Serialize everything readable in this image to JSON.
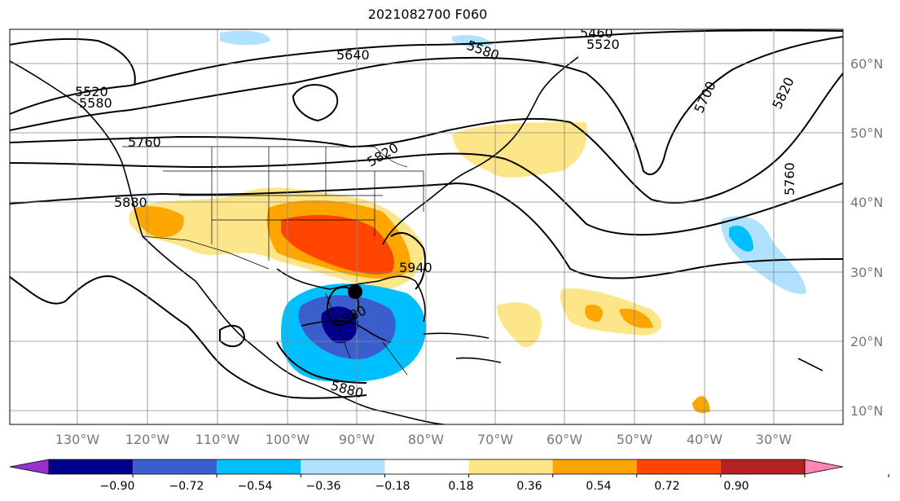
{
  "title": "2021082700 F060",
  "map": {
    "lat_labels": [
      "10°N",
      "20°N",
      "30°N",
      "40°N",
      "50°N",
      "60°N"
    ],
    "lon_labels": [
      "130°W",
      "120°W",
      "110°W",
      "100°W",
      "90°W",
      "80°W",
      "70°W",
      "60°W",
      "50°W",
      "40°W",
      "30°W"
    ],
    "contour_labels": [
      "5460",
      "5520",
      "5580",
      "5640",
      "5520",
      "5580",
      "5700",
      "5820",
      "5760",
      "5820",
      "5880",
      "5940",
      "5880",
      "5880",
      "5760"
    ]
  },
  "colorbar": {
    "ticks": [
      "−0.90",
      "−0.72",
      "−0.54",
      "−0.36",
      "−0.18",
      "0.18",
      "0.36",
      "0.54",
      "0.72",
      "0.90"
    ],
    "colors": [
      "#9932cc",
      "#00008b",
      "#3a5fcd",
      "#00bfff",
      "#b0e2ff",
      "#ffffff",
      "#fde68a",
      "#ffa500",
      "#ff4500",
      "#b22222",
      "#ff85b4"
    ]
  }
}
